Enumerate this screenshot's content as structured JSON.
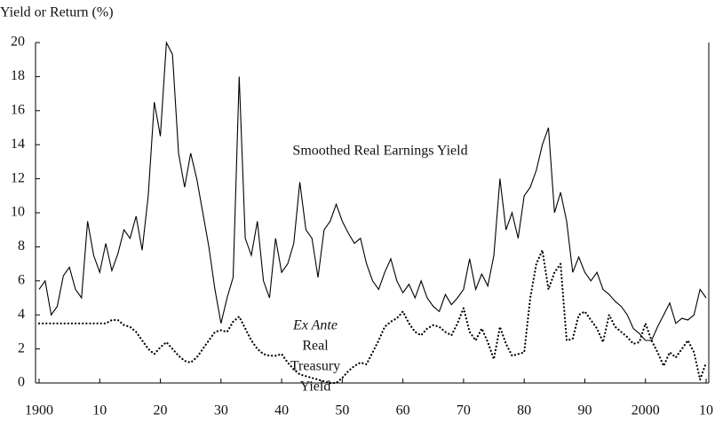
{
  "chart_data": {
    "type": "line",
    "y_axis_label": "Yield or Return (%)",
    "x": [
      1900,
      1901,
      1902,
      1903,
      1904,
      1905,
      1906,
      1907,
      1908,
      1909,
      1910,
      1911,
      1912,
      1913,
      1914,
      1915,
      1916,
      1917,
      1918,
      1919,
      1920,
      1921,
      1922,
      1923,
      1924,
      1925,
      1926,
      1927,
      1928,
      1929,
      1930,
      1931,
      1932,
      1933,
      1934,
      1935,
      1936,
      1937,
      1938,
      1939,
      1940,
      1941,
      1942,
      1943,
      1944,
      1945,
      1946,
      1947,
      1948,
      1949,
      1950,
      1951,
      1952,
      1953,
      1954,
      1955,
      1956,
      1957,
      1958,
      1959,
      1960,
      1961,
      1962,
      1963,
      1964,
      1965,
      1966,
      1967,
      1968,
      1969,
      1970,
      1971,
      1972,
      1973,
      1974,
      1975,
      1976,
      1977,
      1978,
      1979,
      1980,
      1981,
      1982,
      1983,
      1984,
      1985,
      1986,
      1987,
      1988,
      1989,
      1990,
      1991,
      1992,
      1993,
      1994,
      1995,
      1996,
      1997,
      1998,
      1999,
      2000,
      2001,
      2002,
      2003,
      2004,
      2005,
      2006,
      2007,
      2008,
      2009,
      2010
    ],
    "series": [
      {
        "name": "Smoothed Real Earnings Yield",
        "color": "#000000",
        "style": "solid",
        "values": [
          5.5,
          6,
          4,
          4.5,
          6.3,
          6.8,
          5.5,
          5,
          9.5,
          7.5,
          6.5,
          8.2,
          6.6,
          7.6,
          9,
          8.5,
          9.8,
          7.8,
          11,
          16.5,
          14.5,
          20,
          19.3,
          13.5,
          11.5,
          13.5,
          12,
          10,
          8,
          5.5,
          3.5,
          5,
          6.2,
          18,
          8.5,
          7.5,
          9.5,
          6,
          5,
          8.5,
          6.5,
          7,
          8.2,
          11.8,
          9,
          8.5,
          6.2,
          9,
          9.5,
          10.5,
          9.5,
          8.8,
          8.2,
          8.5,
          7,
          6,
          5.5,
          6.5,
          7.3,
          6,
          5.3,
          5.8,
          5,
          6,
          5,
          4.5,
          4.2,
          5.2,
          4.6,
          5,
          5.5,
          7.3,
          5.5,
          6.4,
          5.7,
          7.5,
          12,
          9,
          10,
          8.5,
          11,
          11.5,
          12.5,
          14,
          15,
          10,
          11.2,
          9.5,
          6.5,
          7.4,
          6.5,
          6,
          6.5,
          5.5,
          5.2,
          4.8,
          4.5,
          4,
          3.2,
          2.9,
          2.5,
          2.5,
          3.3,
          4,
          4.7,
          3.5,
          3.8,
          3.7,
          4,
          5.5,
          5
        ]
      },
      {
        "label_lines": [
          "Ex Ante",
          "Real",
          "Treasury",
          "Yield"
        ],
        "color": "#000000",
        "style": "dotted",
        "values": [
          3.5,
          3.5,
          3.5,
          3.5,
          3.5,
          3.5,
          3.5,
          3.5,
          3.5,
          3.5,
          3.5,
          3.5,
          3.7,
          3.7,
          3.4,
          3.3,
          3.0,
          2.5,
          2,
          1.7,
          2.1,
          2.4,
          2,
          1.6,
          1.3,
          1.2,
          1.5,
          2,
          2.5,
          3,
          3.1,
          3,
          3.6,
          3.9,
          3.2,
          2.5,
          2,
          1.7,
          1.6,
          1.6,
          1.7,
          1.2,
          0.8,
          0.5,
          0.4,
          0.3,
          0.2,
          0.1,
          0,
          0,
          0.3,
          0.7,
          1,
          1.2,
          1.1,
          1.8,
          2.5,
          3.3,
          3.6,
          3.8,
          4.2,
          3.5,
          3,
          2.8,
          3.2,
          3.4,
          3.3,
          3,
          2.8,
          3.5,
          4.4,
          3,
          2.5,
          3.2,
          2.4,
          1.4,
          3.3,
          2.3,
          1.6,
          1.7,
          1.8,
          5,
          7,
          7.8,
          5.5,
          6.5,
          7,
          2.5,
          2.6,
          4,
          4.2,
          3.7,
          3.2,
          2.4,
          4,
          3.3,
          3,
          2.7,
          2.3,
          2.4,
          3.5,
          2.5,
          1.8,
          1,
          1.8,
          1.5,
          2,
          2.5,
          1.8,
          0.2,
          1.2
        ]
      }
    ],
    "xlim": [
      1900,
      2010
    ],
    "xticks": [
      1900,
      {
        "value": 1910,
        "label": "10"
      },
      {
        "value": 1920,
        "label": "20"
      },
      {
        "value": 1930,
        "label": "30"
      },
      {
        "value": 1940,
        "label": "40"
      },
      {
        "value": 1950,
        "label": "50"
      },
      {
        "value": 1960,
        "label": "60"
      },
      {
        "value": 1970,
        "label": "70"
      },
      {
        "value": 1980,
        "label": "80"
      },
      {
        "value": 1990,
        "label": "90"
      },
      2000,
      {
        "value": 2010,
        "label": "10"
      }
    ],
    "ylim": [
      0,
      20
    ],
    "yticks": [
      0,
      2,
      4,
      6,
      8,
      10,
      12,
      14,
      16,
      18,
      20
    ],
    "grid": false
  }
}
